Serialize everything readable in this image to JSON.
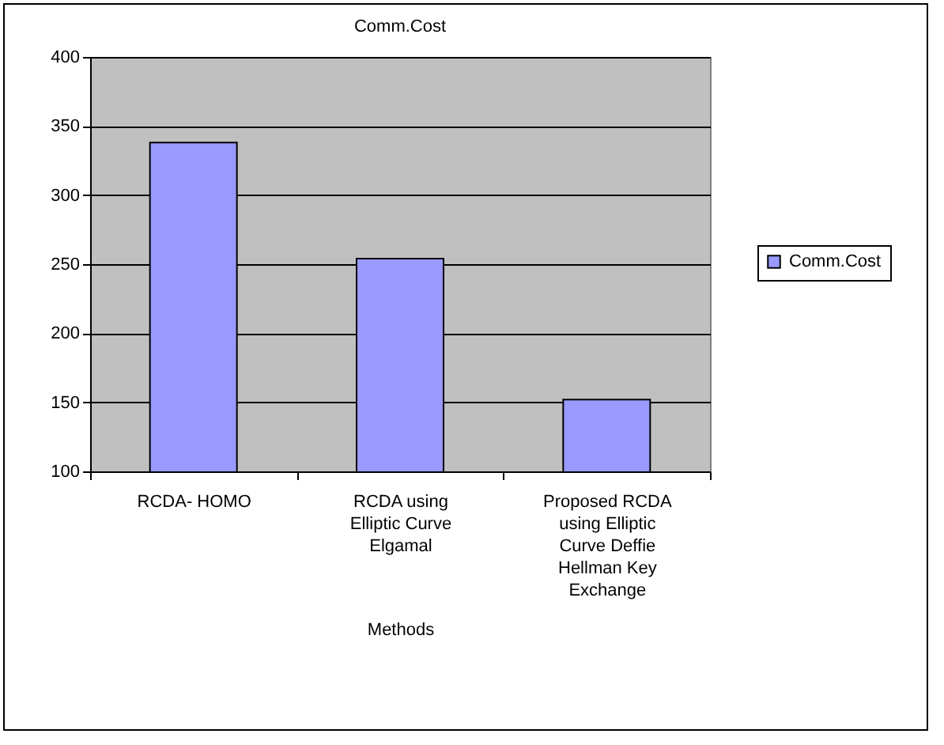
{
  "chart_data": {
    "type": "bar",
    "title": "Comm.Cost",
    "xlabel": "Methods",
    "categories": [
      "RCDA- HOMO",
      "RCDA using Elliptic Curve Elgamal",
      "Proposed RCDA using Elliptic Curve Deffie Hellman Key Exchange"
    ],
    "series": [
      {
        "name": "Comm.Cost",
        "color": "#9999ff",
        "values": [
          338,
          254,
          152
        ]
      }
    ],
    "ylim": [
      100,
      400
    ],
    "yticks": [
      100,
      150,
      200,
      250,
      300,
      350,
      400
    ],
    "grid": "y",
    "legend": "right"
  }
}
